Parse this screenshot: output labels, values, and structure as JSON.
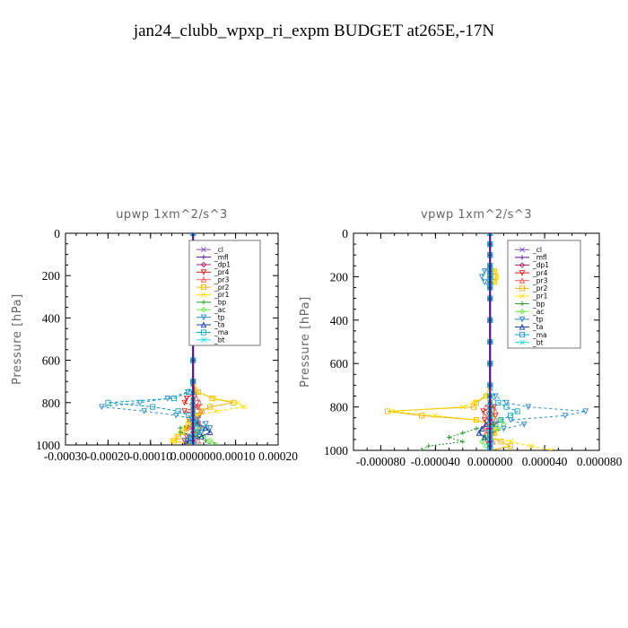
{
  "title": "jan24_clubb_wpxp_ri_expm  BUDGET at265E,-17N",
  "legend_entries": [
    {
      "name": "_cl",
      "color": "#8a4fc1"
    },
    {
      "name": "_mfl",
      "color": "#5a0f8f"
    },
    {
      "name": "_dp1",
      "color": "#b02266"
    },
    {
      "name": "_pr4",
      "color": "#e02020"
    },
    {
      "name": "_pr3",
      "color": "#ff5a5a"
    },
    {
      "name": "_pr2",
      "color": "#f3b300"
    },
    {
      "name": "_pr1",
      "color": "#ffe000"
    },
    {
      "name": "_bp",
      "color": "#229922"
    },
    {
      "name": "_ac",
      "color": "#66ee44"
    },
    {
      "name": "_tp",
      "color": "#2a8ad4"
    },
    {
      "name": "_ta",
      "color": "#1a3fa5"
    },
    {
      "name": "_ma",
      "color": "#16a2c0"
    },
    {
      "name": "_bt",
      "color": "#1de0e0"
    }
  ],
  "chart_data": [
    {
      "type": "line",
      "title": "upwp   1xm^2/s^3",
      "xlabel": "",
      "ylabel": "Pressure  [hPa]",
      "xlim": [
        -0.0003,
        0.0002
      ],
      "ylim": [
        1000,
        0
      ],
      "x_ticks": [
        -0.0003,
        -0.0002,
        -0.0001,
        0.0,
        0.0001,
        0.0002
      ],
      "x_tick_labels": [
        "-0.00030",
        "-0.00020",
        "-0.00010",
        "0.000000",
        "0.00010",
        "0.00020"
      ],
      "y_ticks": [
        0,
        200,
        400,
        600,
        800,
        1000
      ],
      "y_tick_labels": [
        "0",
        "200",
        "400",
        "600",
        "800",
        "1000"
      ],
      "legend_position": "top-right",
      "y": [
        0,
        50,
        100,
        200,
        300,
        400,
        500,
        600,
        700,
        750,
        780,
        800,
        820,
        840,
        860,
        880,
        900,
        920,
        940,
        960,
        980,
        1000
      ],
      "series": [
        {
          "name": "_cl",
          "x": [
            0,
            0,
            0,
            0,
            0,
            0,
            0,
            0,
            0,
            0,
            0,
            0,
            0,
            0,
            0,
            0,
            0,
            0,
            0,
            0,
            0,
            0
          ]
        },
        {
          "name": "_mfl",
          "x": [
            0,
            0,
            0,
            0,
            0,
            0,
            0,
            0,
            0,
            0,
            0,
            0,
            0,
            0,
            0,
            0,
            0,
            0,
            0,
            0,
            0,
            0
          ]
        },
        {
          "name": "_dp1",
          "x": [
            0,
            0,
            0,
            0,
            0,
            0,
            0,
            0,
            0,
            0,
            0,
            0,
            0,
            0,
            0,
            0,
            0,
            0,
            0,
            0,
            0,
            0
          ]
        },
        {
          "name": "_pr4",
          "x": [
            0,
            0,
            0,
            0,
            0,
            0,
            0,
            0,
            0,
            5e-06,
            -1.5e-05,
            -2e-05,
            1.2e-05,
            -2e-05,
            1.5e-05,
            -1e-05,
            1.2e-05,
            -1.5e-05,
            1e-05,
            -1.5e-05,
            -2e-05,
            0
          ]
        },
        {
          "name": "_pr3",
          "x": [
            0,
            0,
            0,
            0,
            0,
            0,
            0,
            0,
            0,
            5e-06,
            8e-06,
            1.5e-05,
            1e-05,
            1.8e-05,
            1.2e-05,
            1e-05,
            1.5e-05,
            2e-05,
            1.5e-05,
            1e-05,
            1.2e-05,
            0
          ]
        },
        {
          "name": "_pr2",
          "x": [
            0,
            0,
            0,
            0,
            0,
            0,
            0,
            0,
            0,
            1.2e-05,
            4.5e-05,
            9.5e-05,
            4e-05,
            2e-05,
            5e-06,
            -8e-06,
            -1e-05,
            -1.5e-05,
            -2e-05,
            -3.5e-05,
            -4.5e-05,
            0
          ]
        },
        {
          "name": "_pr1",
          "x": [
            0,
            0,
            0,
            0,
            0,
            0,
            0,
            0,
            0,
            1e-05,
            5e-05,
            0.000105,
            0.00012,
            5.5e-05,
            1e-05,
            3e-06,
            -1e-05,
            -2e-05,
            -3e-05,
            -4e-05,
            -5e-05,
            0
          ]
        },
        {
          "name": "_bp",
          "x": [
            0,
            0,
            0,
            0,
            0,
            0,
            0,
            0,
            0,
            0,
            0,
            0,
            0,
            0,
            0,
            0,
            5e-06,
            -3e-05,
            -3e-05,
            1e-05,
            3e-05,
            4e-05
          ]
        },
        {
          "name": "_ac",
          "x": [
            0,
            0,
            0,
            0,
            0,
            0,
            0,
            0,
            0,
            0,
            0,
            0,
            0,
            0,
            0,
            0,
            5e-06,
            5e-06,
            1e-05,
            2.5e-05,
            4e-05,
            5.5e-05
          ]
        },
        {
          "name": "_tp",
          "x": [
            0,
            0,
            0,
            0,
            0,
            0,
            0,
            0,
            0,
            -1.2e-05,
            -6e-05,
            -0.000125,
            -0.000215,
            -0.000115,
            -4e-05,
            1e-05,
            3e-05,
            4e-05,
            2e-05,
            -1e-05,
            -1.5e-05,
            0
          ]
        },
        {
          "name": "_ta",
          "x": [
            0,
            0,
            0,
            0,
            0,
            0,
            0,
            0,
            0,
            0,
            0,
            0,
            0,
            0,
            0,
            0,
            1e-05,
            3e-05,
            4e-05,
            2e-05,
            -1e-05,
            -2e-05
          ]
        },
        {
          "name": "_ma",
          "x": [
            0,
            0,
            0,
            0,
            0,
            0,
            0,
            0,
            0,
            -1e-05,
            -4.5e-05,
            -0.0002,
            -9.5e-05,
            -3.5e-05,
            -1e-05,
            0,
            8e-06,
            1.8e-05,
            1e-05,
            0,
            0,
            0
          ]
        },
        {
          "name": "_bt",
          "x": [
            0,
            0,
            0,
            0,
            0,
            0,
            0,
            0,
            0,
            0,
            0,
            0,
            0,
            0,
            0,
            0,
            0,
            0,
            0,
            0,
            0,
            0
          ]
        }
      ]
    },
    {
      "type": "line",
      "title": "vpwp   1xm^2/s^3",
      "xlabel": "",
      "ylabel": "Pressure  [hPa]",
      "xlim": [
        -0.0001,
        8e-05
      ],
      "ylim": [
        1000,
        0
      ],
      "x_ticks": [
        -8e-05,
        -4e-05,
        0.0,
        4e-05,
        8e-05
      ],
      "x_tick_labels": [
        "-0.000080",
        "-0.000040",
        "0.000000",
        "0.000040",
        "0.000080"
      ],
      "y_ticks": [
        0,
        200,
        400,
        600,
        800,
        1000
      ],
      "y_tick_labels": [
        "0",
        "200",
        "400",
        "600",
        "800",
        "1000"
      ],
      "legend_position": "top-right",
      "y": [
        0,
        50,
        100,
        150,
        175,
        200,
        225,
        250,
        300,
        400,
        500,
        600,
        700,
        750,
        780,
        800,
        820,
        840,
        860,
        880,
        900,
        920,
        940,
        960,
        980,
        1000
      ],
      "series": [
        {
          "name": "_cl",
          "x": [
            0,
            0,
            0,
            0,
            0,
            0,
            0,
            0,
            0,
            0,
            0,
            0,
            0,
            0,
            0,
            0,
            0,
            0,
            0,
            0,
            0,
            0,
            0,
            0,
            0,
            0
          ]
        },
        {
          "name": "_mfl",
          "x": [
            0,
            0,
            0,
            0,
            0,
            0,
            0,
            0,
            0,
            0,
            0,
            0,
            0,
            0,
            0,
            0,
            0,
            0,
            0,
            0,
            0,
            0,
            0,
            0,
            0,
            0
          ]
        },
        {
          "name": "_dp1",
          "x": [
            0,
            0,
            0,
            0,
            0,
            0,
            0,
            0,
            0,
            0,
            0,
            0,
            0,
            0,
            0,
            0,
            0,
            0,
            0,
            0,
            0,
            0,
            0,
            0,
            0,
            0
          ]
        },
        {
          "name": "_pr4",
          "x": [
            0,
            0,
            0,
            0,
            0,
            0,
            0,
            0,
            0,
            0,
            0,
            0,
            0,
            0,
            0,
            3e-06,
            -5e-06,
            4e-06,
            -4e-06,
            3e-06,
            -3e-06,
            3e-06,
            0,
            -2e-06,
            0,
            0
          ]
        },
        {
          "name": "_pr3",
          "x": [
            0,
            0,
            0,
            0,
            0,
            0,
            0,
            0,
            0,
            0,
            0,
            0,
            0,
            0,
            0,
            -3e-06,
            4e-06,
            -4e-06,
            4e-06,
            -3e-06,
            3e-06,
            -3e-06,
            0,
            2e-06,
            0,
            0
          ]
        },
        {
          "name": "_pr2",
          "x": [
            0,
            0,
            0,
            0,
            3e-06,
            4e-06,
            3e-06,
            0,
            0,
            0,
            0,
            0,
            0,
            -3e-06,
            -1e-05,
            -1.2e-05,
            -7.5e-05,
            -5e-05,
            -1e-05,
            0,
            4e-06,
            3e-06,
            0,
            8e-06,
            1.5e-05,
            0
          ]
        },
        {
          "name": "_pr1",
          "x": [
            0,
            0,
            0,
            0,
            4e-06,
            5e-06,
            4e-06,
            0,
            0,
            0,
            0,
            0,
            0,
            -3e-06,
            -1.2e-05,
            -2e-05,
            -7.2e-05,
            -4e-05,
            -1e-05,
            0,
            4e-06,
            4e-06,
            0,
            1.5e-05,
            3e-05,
            4.5e-05
          ]
        },
        {
          "name": "_bp",
          "x": [
            0,
            0,
            0,
            0,
            0,
            0,
            0,
            0,
            0,
            0,
            0,
            0,
            0,
            0,
            0,
            0,
            0,
            0,
            0,
            3e-06,
            -1e-05,
            -2e-05,
            -3e-05,
            -2e-05,
            -4.5e-05,
            -5e-05
          ]
        },
        {
          "name": "_ac",
          "x": [
            0,
            0,
            0,
            0,
            0,
            0,
            0,
            0,
            0,
            0,
            0,
            0,
            0,
            0,
            0,
            0,
            0,
            0,
            8e-06,
            1e-05,
            6e-06,
            0,
            -4e-06,
            -6e-06,
            -3e-06,
            0
          ]
        },
        {
          "name": "_tp",
          "x": [
            0,
            0,
            0,
            0,
            -4e-06,
            -6e-06,
            -4e-06,
            0,
            0,
            0,
            0,
            0,
            0,
            4e-06,
            1.2e-05,
            2.8e-05,
            7e-05,
            5.5e-05,
            1.5e-05,
            2.5e-05,
            1e-05,
            0,
            0,
            0,
            0,
            0
          ]
        },
        {
          "name": "_ta",
          "x": [
            0,
            0,
            0,
            0,
            0,
            0,
            0,
            0,
            0,
            0,
            0,
            0,
            0,
            0,
            0,
            0,
            0,
            0,
            0,
            -3e-06,
            -6e-06,
            -8e-06,
            -4e-06,
            0,
            0,
            0
          ]
        },
        {
          "name": "_ma",
          "x": [
            0,
            0,
            0,
            0,
            0,
            0,
            0,
            0,
            0,
            0,
            0,
            0,
            0,
            0,
            6e-06,
            1.2e-05,
            2e-05,
            1.5e-05,
            8e-06,
            4e-06,
            0,
            0,
            0,
            0,
            0,
            0
          ]
        },
        {
          "name": "_bt",
          "x": [
            0,
            0,
            0,
            0,
            0,
            0,
            0,
            0,
            0,
            0,
            0,
            0,
            0,
            0,
            0,
            0,
            0,
            0,
            0,
            0,
            0,
            0,
            0,
            0,
            0,
            0
          ]
        }
      ]
    }
  ]
}
